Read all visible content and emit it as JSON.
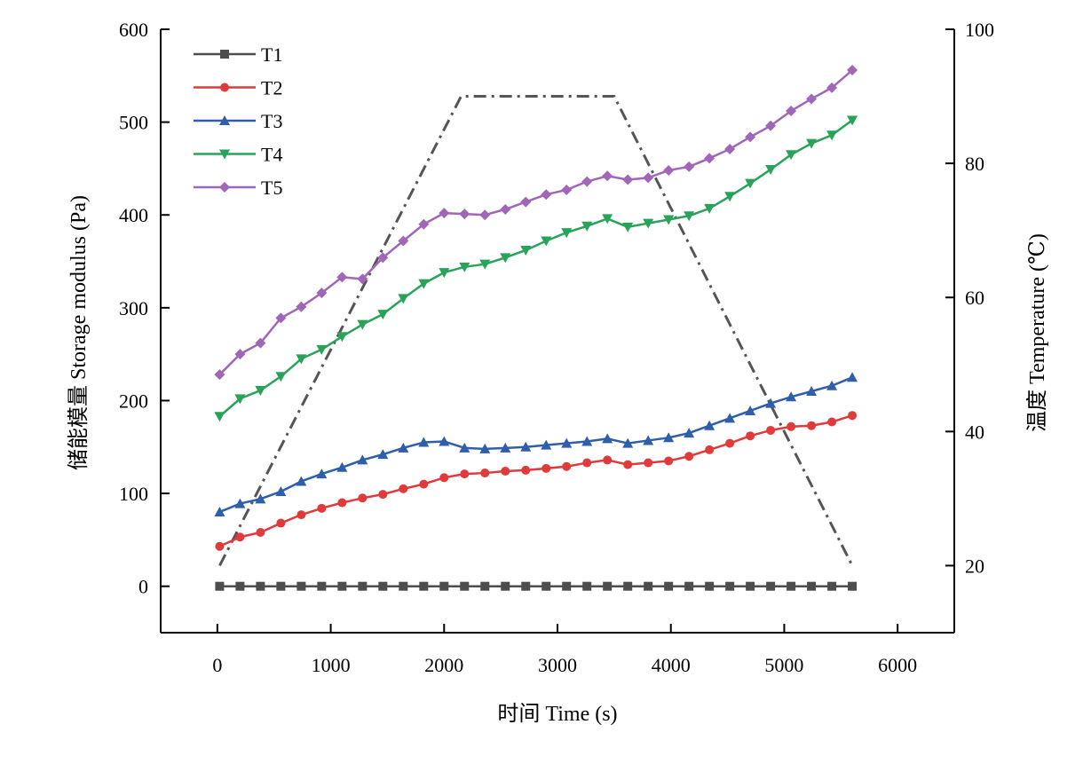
{
  "chart_data": {
    "type": "line",
    "xlabel": "时间 Time (s)",
    "ylabel": "储能模量 Storage modulus (Pa)",
    "y2label": "温度 Temperature (℃)",
    "xlim": [
      -500,
      6500
    ],
    "ylim": [
      -50,
      600
    ],
    "y2lim": [
      10,
      100
    ],
    "xticks": [
      "0",
      "1000",
      "2000",
      "3000",
      "4000",
      "5000",
      "6000"
    ],
    "yticks": [
      "0",
      "100",
      "200",
      "300",
      "400",
      "500",
      "600"
    ],
    "y2ticks": [
      "20",
      "40",
      "60",
      "80",
      "100"
    ],
    "grid": false,
    "legend_position": "top-left",
    "x": [
      20,
      200,
      380,
      560,
      740,
      920,
      1100,
      1280,
      1460,
      1640,
      1820,
      2000,
      2180,
      2360,
      2540,
      2720,
      2900,
      3080,
      3260,
      3440,
      3620,
      3800,
      3980,
      4160,
      4340,
      4520,
      4700,
      4880,
      5060,
      5240,
      5420,
      5600
    ],
    "series": [
      {
        "name": "T1",
        "color": "#4d4d4d",
        "marker": "square",
        "values": [
          0,
          0,
          0,
          0,
          0,
          0,
          0,
          0,
          0,
          0,
          0,
          0,
          0,
          0,
          0,
          0,
          0,
          0,
          0,
          0,
          0,
          0,
          0,
          0,
          0,
          0,
          0,
          0,
          0,
          0,
          0,
          0
        ]
      },
      {
        "name": "T2",
        "color": "#e03a3a",
        "marker": "circle",
        "values": [
          43,
          53,
          58,
          68,
          77,
          84,
          90,
          95,
          99,
          105,
          110,
          117,
          121,
          122,
          124,
          125,
          127,
          129,
          133,
          136,
          131,
          133,
          135,
          140,
          147,
          154,
          162,
          168,
          172,
          173,
          177,
          184
        ]
      },
      {
        "name": "T3",
        "color": "#2f5eaa",
        "marker": "triangle-up",
        "values": [
          80,
          89,
          94,
          102,
          113,
          121,
          128,
          136,
          142,
          149,
          155,
          156,
          149,
          148,
          149,
          150,
          152,
          154,
          156,
          159,
          154,
          157,
          160,
          165,
          173,
          181,
          189,
          197,
          204,
          210,
          216,
          225
        ]
      },
      {
        "name": "T4",
        "color": "#2aa35a",
        "marker": "triangle-down",
        "values": [
          183,
          202,
          211,
          226,
          245,
          255,
          269,
          282,
          293,
          310,
          326,
          338,
          344,
          347,
          354,
          362,
          372,
          381,
          388,
          396,
          387,
          391,
          395,
          399,
          407,
          420,
          434,
          449,
          465,
          477,
          486,
          502
        ]
      },
      {
        "name": "T5",
        "color": "#a066b8",
        "marker": "diamond",
        "values": [
          228,
          250,
          262,
          289,
          301,
          316,
          333,
          331,
          354,
          372,
          390,
          402,
          401,
          400,
          406,
          414,
          422,
          427,
          436,
          442,
          438,
          440,
          448,
          452,
          461,
          471,
          484,
          496,
          512,
          525,
          537,
          556
        ]
      }
    ],
    "temperature": {
      "color": "#555555",
      "style": "dash-dot",
      "x": [
        20,
        2150,
        3500,
        5600
      ],
      "values": [
        20,
        90,
        90,
        20
      ]
    }
  }
}
